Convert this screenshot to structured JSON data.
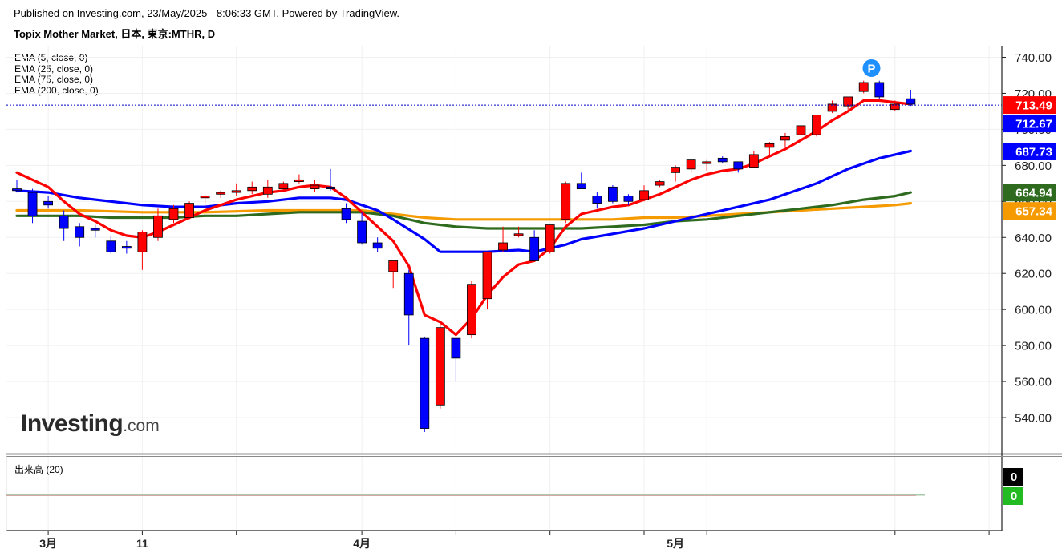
{
  "header": {
    "published": "Published on Investing.com, 23/May/2025 - 8:06:33 GMT, Powered by TradingView.",
    "symbol": "Topix Mother Market, 日本, 東京:MTHR, D"
  },
  "indicators": [
    {
      "label": "EMA (5, close, 0)",
      "color": "#ff0000"
    },
    {
      "label": "EMA (25, close, 0)",
      "color": "#0000ff"
    },
    {
      "label": "EMA (75, close, 0)",
      "color": "#2e6b1f"
    },
    {
      "label": "EMA (200, close, 0)",
      "color": "#f59a00"
    }
  ],
  "volume_panel": {
    "label": "出来高 (20)",
    "tags": [
      {
        "text": "0",
        "color": "#000000"
      },
      {
        "text": "0",
        "color": "#22bb22"
      }
    ]
  },
  "logo": {
    "main": "Investing",
    "suffix": ".com"
  },
  "chart_data": {
    "type": "candlestick",
    "ylim": [
      520,
      746
    ],
    "y_ticks": [
      540,
      560,
      580,
      600,
      620,
      640,
      660,
      680,
      700,
      720,
      740
    ],
    "y_tick_labels": [
      "540.00",
      "560.00",
      "580.00",
      "600.00",
      "620.00",
      "640.00",
      "660.00",
      "680.00",
      "700.00",
      "720.00",
      "740.00"
    ],
    "x_labels": [
      {
        "text": "3月",
        "index": 2
      },
      {
        "text": "11",
        "index": 8
      },
      {
        "text": "4月",
        "index": 22
      },
      {
        "text": "5月",
        "index": 42
      }
    ],
    "x_ticks": [
      2,
      8,
      14,
      22,
      28,
      34,
      40,
      44,
      50,
      56,
      62
    ],
    "candles": [
      {
        "o": 667,
        "h": 672,
        "l": 665,
        "c": 666
      },
      {
        "o": 665,
        "h": 667,
        "l": 648,
        "c": 652
      },
      {
        "o": 660,
        "h": 663,
        "l": 656,
        "c": 658
      },
      {
        "o": 652,
        "h": 655,
        "l": 638,
        "c": 645
      },
      {
        "o": 646,
        "h": 648,
        "l": 635,
        "c": 640
      },
      {
        "o": 645,
        "h": 647,
        "l": 640,
        "c": 644
      },
      {
        "o": 638,
        "h": 641,
        "l": 631,
        "c": 632
      },
      {
        "o": 635,
        "h": 638,
        "l": 631,
        "c": 634
      },
      {
        "o": 632,
        "h": 644,
        "l": 622,
        "c": 643
      },
      {
        "o": 640,
        "h": 656,
        "l": 638,
        "c": 652
      },
      {
        "o": 650,
        "h": 658,
        "l": 648,
        "c": 656
      },
      {
        "o": 651,
        "h": 660,
        "l": 650,
        "c": 659
      },
      {
        "o": 662,
        "h": 664,
        "l": 656,
        "c": 663
      },
      {
        "o": 664,
        "h": 666,
        "l": 662,
        "c": 665
      },
      {
        "o": 665,
        "h": 670,
        "l": 663,
        "c": 666
      },
      {
        "o": 666,
        "h": 671,
        "l": 664,
        "c": 668
      },
      {
        "o": 664,
        "h": 672,
        "l": 662,
        "c": 668
      },
      {
        "o": 667,
        "h": 671,
        "l": 666,
        "c": 670
      },
      {
        "o": 671,
        "h": 675,
        "l": 670,
        "c": 672
      },
      {
        "o": 667,
        "h": 672,
        "l": 665,
        "c": 669
      },
      {
        "o": 668,
        "h": 678,
        "l": 666,
        "c": 667
      },
      {
        "o": 656,
        "h": 659,
        "l": 648,
        "c": 650
      },
      {
        "o": 649,
        "h": 654,
        "l": 636,
        "c": 637
      },
      {
        "o": 637,
        "h": 640,
        "l": 632,
        "c": 634
      },
      {
        "o": 621,
        "h": 626,
        "l": 612,
        "c": 627
      },
      {
        "o": 620,
        "h": 622,
        "l": 580,
        "c": 597
      },
      {
        "o": 584,
        "h": 585,
        "l": 532,
        "c": 534
      },
      {
        "o": 547,
        "h": 592,
        "l": 545,
        "c": 590
      },
      {
        "o": 584,
        "h": 584,
        "l": 560,
        "c": 573
      },
      {
        "o": 586,
        "h": 616,
        "l": 584,
        "c": 614
      },
      {
        "o": 606,
        "h": 632,
        "l": 600,
        "c": 632
      },
      {
        "o": 633,
        "h": 646,
        "l": 632,
        "c": 637
      },
      {
        "o": 641,
        "h": 646,
        "l": 640,
        "c": 642
      },
      {
        "o": 640,
        "h": 644,
        "l": 627,
        "c": 627
      },
      {
        "o": 632,
        "h": 646,
        "l": 631,
        "c": 647
      },
      {
        "o": 650,
        "h": 671,
        "l": 648,
        "c": 670
      },
      {
        "o": 670,
        "h": 676,
        "l": 667,
        "c": 667
      },
      {
        "o": 663,
        "h": 665,
        "l": 656,
        "c": 659
      },
      {
        "o": 668,
        "h": 669,
        "l": 659,
        "c": 660
      },
      {
        "o": 663,
        "h": 664,
        "l": 658,
        "c": 660
      },
      {
        "o": 661,
        "h": 669,
        "l": 660,
        "c": 666
      },
      {
        "o": 669,
        "h": 672,
        "l": 668,
        "c": 671
      },
      {
        "o": 676,
        "h": 680,
        "l": 671,
        "c": 679
      },
      {
        "o": 678,
        "h": 683,
        "l": 676,
        "c": 683
      },
      {
        "o": 681,
        "h": 683,
        "l": 677,
        "c": 682
      },
      {
        "o": 684,
        "h": 685,
        "l": 681,
        "c": 682
      },
      {
        "o": 682,
        "h": 682,
        "l": 676,
        "c": 678
      },
      {
        "o": 679,
        "h": 688,
        "l": 679,
        "c": 686
      },
      {
        "o": 690,
        "h": 693,
        "l": 685,
        "c": 692
      },
      {
        "o": 694,
        "h": 698,
        "l": 690,
        "c": 696
      },
      {
        "o": 697,
        "h": 703,
        "l": 695,
        "c": 702
      },
      {
        "o": 697,
        "h": 708,
        "l": 696,
        "c": 708
      },
      {
        "o": 710,
        "h": 716,
        "l": 709,
        "c": 714
      },
      {
        "o": 713,
        "h": 718,
        "l": 711,
        "c": 718
      },
      {
        "o": 721,
        "h": 727,
        "l": 720,
        "c": 726
      },
      {
        "o": 726,
        "h": 727,
        "l": 717,
        "c": 718
      },
      {
        "o": 711,
        "h": 716,
        "l": 710,
        "c": 714
      },
      {
        "o": 717,
        "h": 722,
        "l": 713,
        "c": 714
      }
    ],
    "series": [
      {
        "name": "EMA (5, close, 0)",
        "color": "#ff0000",
        "values": [
          [
            0,
            676
          ],
          [
            1,
            672
          ],
          [
            2,
            668
          ],
          [
            3,
            660
          ],
          [
            4,
            653
          ],
          [
            5,
            649
          ],
          [
            6,
            644
          ],
          [
            7,
            641
          ],
          [
            8,
            640
          ],
          [
            9,
            643
          ],
          [
            10,
            647
          ],
          [
            11,
            651
          ],
          [
            12,
            655
          ],
          [
            13,
            658
          ],
          [
            14,
            661
          ],
          [
            15,
            663
          ],
          [
            16,
            665
          ],
          [
            17,
            666
          ],
          [
            18,
            668
          ],
          [
            19,
            669
          ],
          [
            20,
            668
          ],
          [
            21,
            662
          ],
          [
            22,
            654
          ],
          [
            23,
            646
          ],
          [
            24,
            638
          ],
          [
            25,
            624
          ],
          [
            26,
            597
          ],
          [
            27,
            593
          ],
          [
            28,
            586
          ],
          [
            29,
            595
          ],
          [
            30,
            608
          ],
          [
            31,
            618
          ],
          [
            32,
            625
          ],
          [
            33,
            627
          ],
          [
            34,
            634
          ],
          [
            35,
            646
          ],
          [
            36,
            653
          ],
          [
            37,
            655
          ],
          [
            38,
            657
          ],
          [
            39,
            658
          ],
          [
            40,
            661
          ],
          [
            41,
            664
          ],
          [
            42,
            668
          ],
          [
            43,
            672
          ],
          [
            44,
            675
          ],
          [
            45,
            677
          ],
          [
            46,
            678
          ],
          [
            47,
            681
          ],
          [
            48,
            685
          ],
          [
            49,
            689
          ],
          [
            50,
            694
          ],
          [
            51,
            699
          ],
          [
            52,
            705
          ],
          [
            53,
            710
          ],
          [
            54,
            716
          ],
          [
            55,
            716
          ],
          [
            56,
            715
          ],
          [
            57,
            714
          ]
        ]
      },
      {
        "name": "EMA (25, close, 0)",
        "color": "#0000ff",
        "values": [
          [
            0,
            666
          ],
          [
            2,
            665
          ],
          [
            4,
            662
          ],
          [
            6,
            660
          ],
          [
            8,
            658
          ],
          [
            10,
            657
          ],
          [
            12,
            657
          ],
          [
            14,
            659
          ],
          [
            16,
            660
          ],
          [
            18,
            662
          ],
          [
            20,
            662
          ],
          [
            21,
            661
          ],
          [
            22,
            658
          ],
          [
            23,
            655
          ],
          [
            24,
            650
          ],
          [
            26,
            639
          ],
          [
            27,
            632
          ],
          [
            28,
            632
          ],
          [
            30,
            632
          ],
          [
            32,
            633
          ],
          [
            33,
            632
          ],
          [
            34,
            634
          ],
          [
            35,
            636
          ],
          [
            36,
            639
          ],
          [
            38,
            642
          ],
          [
            40,
            645
          ],
          [
            42,
            649
          ],
          [
            44,
            653
          ],
          [
            46,
            657
          ],
          [
            48,
            661
          ],
          [
            50,
            667
          ],
          [
            51,
            670
          ],
          [
            52,
            674
          ],
          [
            53,
            678
          ],
          [
            54,
            681
          ],
          [
            55,
            684
          ],
          [
            56,
            686
          ],
          [
            57,
            688
          ]
        ]
      },
      {
        "name": "EMA (75, close, 0)",
        "color": "#2e6b1f",
        "values": [
          [
            0,
            652
          ],
          [
            2,
            652
          ],
          [
            4,
            652
          ],
          [
            6,
            651
          ],
          [
            8,
            651
          ],
          [
            10,
            651
          ],
          [
            12,
            652
          ],
          [
            14,
            652
          ],
          [
            16,
            653
          ],
          [
            18,
            654
          ],
          [
            20,
            654
          ],
          [
            22,
            654
          ],
          [
            24,
            652
          ],
          [
            26,
            648
          ],
          [
            28,
            646
          ],
          [
            30,
            645
          ],
          [
            32,
            645
          ],
          [
            34,
            645
          ],
          [
            36,
            645
          ],
          [
            38,
            646
          ],
          [
            40,
            647
          ],
          [
            42,
            649
          ],
          [
            44,
            650
          ],
          [
            46,
            652
          ],
          [
            48,
            654
          ],
          [
            50,
            656
          ],
          [
            52,
            658
          ],
          [
            54,
            661
          ],
          [
            56,
            663
          ],
          [
            57,
            665
          ]
        ]
      },
      {
        "name": "EMA (200, close, 0)",
        "color": "#f59a00",
        "values": [
          [
            0,
            655
          ],
          [
            4,
            655
          ],
          [
            8,
            654
          ],
          [
            12,
            654
          ],
          [
            16,
            655
          ],
          [
            20,
            655
          ],
          [
            22,
            655
          ],
          [
            24,
            653
          ],
          [
            26,
            651
          ],
          [
            28,
            650
          ],
          [
            30,
            650
          ],
          [
            32,
            650
          ],
          [
            34,
            650
          ],
          [
            36,
            650
          ],
          [
            38,
            650
          ],
          [
            40,
            651
          ],
          [
            42,
            651
          ],
          [
            44,
            652
          ],
          [
            46,
            653
          ],
          [
            48,
            654
          ],
          [
            50,
            655
          ],
          [
            52,
            656
          ],
          [
            54,
            657
          ],
          [
            56,
            658
          ],
          [
            57,
            659
          ]
        ]
      }
    ],
    "price_line": 713.49,
    "price_tags": [
      {
        "value": 713.49,
        "label": "713.49",
        "color": "#ff0000"
      },
      {
        "value": 712.67,
        "label": "712.67",
        "color": "#0000ff"
      },
      {
        "value": 687.73,
        "label": "687.73",
        "color": "#0000ff"
      },
      {
        "value": 664.94,
        "label": "664.94",
        "color": "#2e6b1f"
      },
      {
        "value": 657.34,
        "label": "657.34",
        "color": "#f59a00"
      }
    ],
    "marker": {
      "text": "P",
      "index": 54.5,
      "value": 734,
      "color": "#1e90ff"
    },
    "up_color": "#ff0000",
    "down_color": "#0000ff",
    "grid": true
  }
}
